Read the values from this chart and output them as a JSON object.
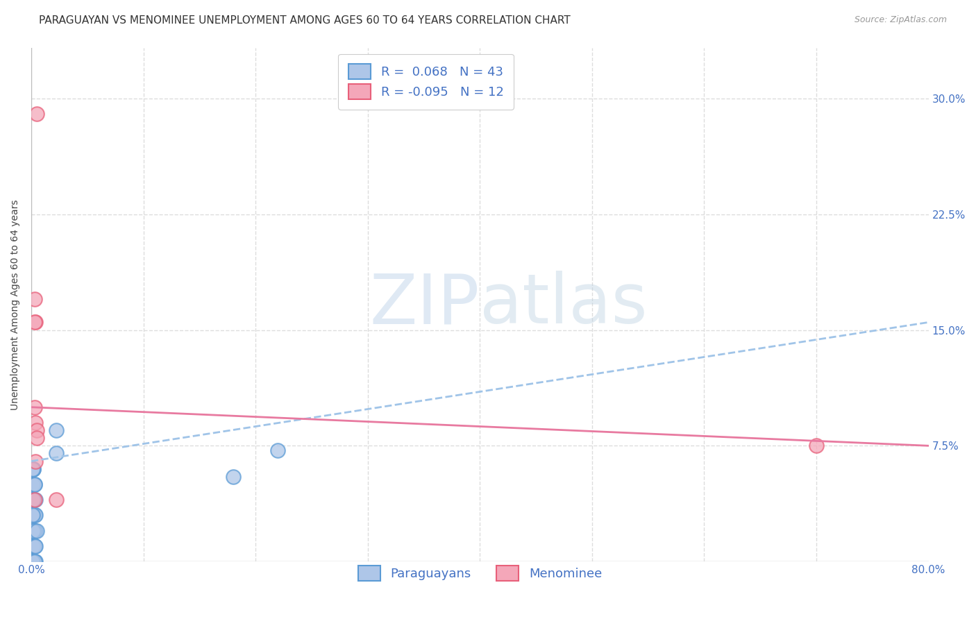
{
  "title": "PARAGUAYAN VS MENOMINEE UNEMPLOYMENT AMONG AGES 60 TO 64 YEARS CORRELATION CHART",
  "source": "Source: ZipAtlas.com",
  "ylabel": "Unemployment Among Ages 60 to 64 years",
  "xlim": [
    0.0,
    0.8
  ],
  "ylim": [
    0.0,
    0.333
  ],
  "xticks": [
    0.0,
    0.1,
    0.2,
    0.3,
    0.4,
    0.5,
    0.6,
    0.7,
    0.8
  ],
  "yticks": [
    0.0,
    0.075,
    0.15,
    0.225,
    0.3
  ],
  "yticklabels_right": [
    "",
    "7.5%",
    "15.0%",
    "22.5%",
    "30.0%"
  ],
  "paraguayan_color": "#aec6e8",
  "menominee_color": "#f4a7b9",
  "paraguayan_edge_color": "#5b9bd5",
  "menominee_edge_color": "#e8607a",
  "paraguayan_trend_color": "#a0c4e8",
  "menominee_trend_color": "#e87aa0",
  "paraguayan_R": 0.068,
  "paraguayan_N": 43,
  "menominee_R": -0.095,
  "menominee_N": 12,
  "legend_text_color": "#4472c4",
  "background_color": "#ffffff",
  "grid_color": "#dddddd",
  "title_fontsize": 11,
  "axis_fontsize": 10,
  "tick_fontsize": 11,
  "legend_fontsize": 13,
  "paraguayan_x": [
    0.002,
    0.003,
    0.001,
    0.002,
    0.004,
    0.003,
    0.001,
    0.002,
    0.003,
    0.004,
    0.001,
    0.002,
    0.003,
    0.002,
    0.001,
    0.003,
    0.002,
    0.001,
    0.004,
    0.003,
    0.002,
    0.001,
    0.003,
    0.002,
    0.001,
    0.002,
    0.003,
    0.004,
    0.001,
    0.002,
    0.003,
    0.002,
    0.001,
    0.003,
    0.002,
    0.001,
    0.005,
    0.004,
    0.003,
    0.022,
    0.022,
    0.18,
    0.22
  ],
  "paraguayan_y": [
    0.0,
    0.0,
    0.0,
    0.01,
    0.0,
    0.02,
    0.01,
    0.03,
    0.01,
    0.02,
    0.04,
    0.02,
    0.03,
    0.05,
    0.04,
    0.03,
    0.06,
    0.05,
    0.04,
    0.05,
    0.06,
    0.06,
    0.05,
    0.04,
    0.03,
    0.02,
    0.01,
    0.03,
    0.02,
    0.04,
    0.02,
    0.01,
    0.0,
    0.01,
    0.02,
    0.03,
    0.02,
    0.01,
    0.0,
    0.085,
    0.07,
    0.055,
    0.072
  ],
  "menominee_x": [
    0.004,
    0.003,
    0.005,
    0.004,
    0.003,
    0.005,
    0.004,
    0.022,
    0.005,
    0.003,
    0.7,
    0.003
  ],
  "menominee_y": [
    0.155,
    0.155,
    0.29,
    0.09,
    0.1,
    0.085,
    0.065,
    0.04,
    0.08,
    0.04,
    0.075,
    0.17
  ],
  "par_trend_x": [
    0.0,
    0.8
  ],
  "par_trend_y": [
    0.065,
    0.155
  ],
  "men_trend_x": [
    0.0,
    0.8
  ],
  "men_trend_y": [
    0.1,
    0.075
  ]
}
